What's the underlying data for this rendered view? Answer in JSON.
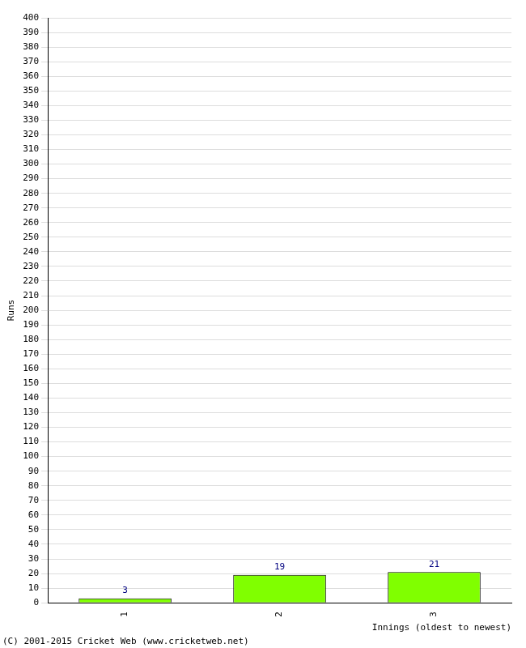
{
  "chart_data": {
    "type": "bar",
    "categories": [
      "1",
      "2",
      "3"
    ],
    "values": [
      3,
      19,
      21
    ],
    "color": "#80ff00",
    "x_label": "Innings (oldest to newest)",
    "y_label": "Runs",
    "annotation": "(C) 2001-2015 Cricket Web (www.cricketweb.net)",
    "ylim": [
      0,
      400
    ],
    "yticks": [
      0,
      10,
      20,
      30,
      40,
      50,
      60,
      70,
      80,
      90,
      100,
      110,
      120,
      130,
      140,
      150,
      160,
      170,
      180,
      190,
      200,
      210,
      220,
      230,
      240,
      250,
      260,
      270,
      280,
      290,
      300,
      310,
      320,
      330,
      340,
      350,
      360,
      370,
      380,
      390,
      400
    ],
    "grid": true,
    "data_labels": true
  }
}
